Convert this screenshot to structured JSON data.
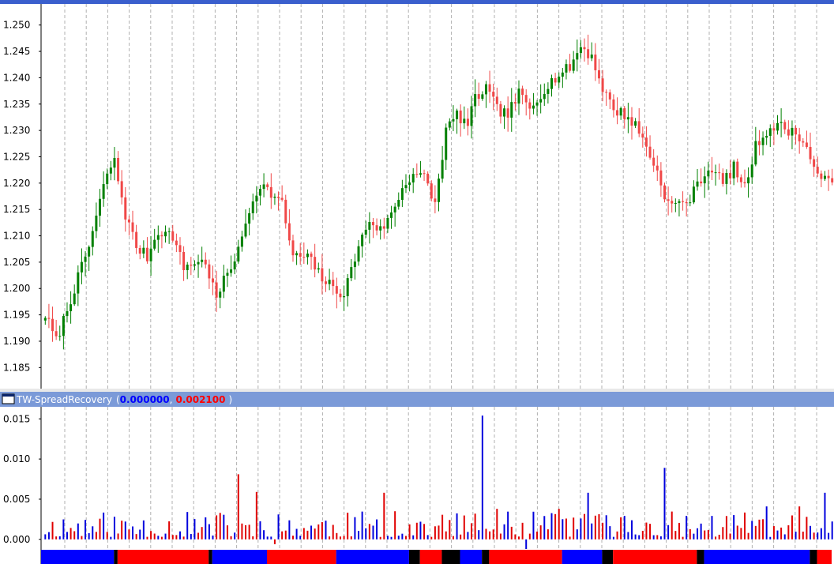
{
  "colors": {
    "up_candle": "#008000",
    "down_candle": "#f04848",
    "positive_bar": "#0000dd",
    "negative_bar": "#e00000",
    "band_blue": "#0000ff",
    "band_red": "#ff0000",
    "band_black": "#000000",
    "separator": "#7b9ad8",
    "grid": "#b0b0b0"
  },
  "price_panel": {
    "y_tick_labels": [
      "1.250",
      "1.245",
      "1.240",
      "1.235",
      "1.230",
      "1.225",
      "1.220",
      "1.215",
      "1.210",
      "1.205",
      "1.200",
      "1.195",
      "1.190",
      "1.185"
    ]
  },
  "indicator_panel": {
    "name": "TW-SpreadRecovery",
    "open_paren": "(",
    "value1": "0.000000",
    "comma": ",",
    "value2": "0.002100",
    "close_paren": ")",
    "value1_color": "#0000ff",
    "value2_color": "#ff0000",
    "y_tick_labels": [
      "0.015",
      "0.010",
      "0.005",
      "0.000"
    ]
  },
  "chart_data": [
    {
      "type": "candlestick",
      "ylim": [
        1.181,
        1.254
      ],
      "grid": "vertical dashed",
      "anchors": [
        [
          0,
          1.195
        ],
        [
          3,
          1.19
        ],
        [
          8,
          1.2
        ],
        [
          12,
          1.208
        ],
        [
          17,
          1.222
        ],
        [
          19,
          1.224
        ],
        [
          22,
          1.214
        ],
        [
          25,
          1.208
        ],
        [
          28,
          1.206
        ],
        [
          31,
          1.211
        ],
        [
          35,
          1.21
        ],
        [
          38,
          1.204
        ],
        [
          41,
          1.205
        ],
        [
          44,
          1.205
        ],
        [
          47,
          1.198
        ],
        [
          50,
          1.203
        ],
        [
          53,
          1.207
        ],
        [
          56,
          1.215
        ],
        [
          59,
          1.22
        ],
        [
          62,
          1.218
        ],
        [
          65,
          1.216
        ],
        [
          68,
          1.206
        ],
        [
          72,
          1.206
        ],
        [
          76,
          1.202
        ],
        [
          79,
          1.2
        ],
        [
          82,
          1.199
        ],
        [
          86,
          1.208
        ],
        [
          89,
          1.213
        ],
        [
          92,
          1.211
        ],
        [
          95,
          1.214
        ],
        [
          98,
          1.219
        ],
        [
          101,
          1.222
        ],
        [
          104,
          1.221
        ],
        [
          107,
          1.216
        ],
        [
          110,
          1.23
        ],
        [
          113,
          1.233
        ],
        [
          116,
          1.231
        ],
        [
          118,
          1.236
        ],
        [
          121,
          1.238
        ],
        [
          124,
          1.234
        ],
        [
          127,
          1.233
        ],
        [
          130,
          1.237
        ],
        [
          133,
          1.234
        ],
        [
          137,
          1.238
        ],
        [
          140,
          1.24
        ],
        [
          144,
          1.242
        ],
        [
          147,
          1.246
        ],
        [
          150,
          1.244
        ],
        [
          153,
          1.238
        ],
        [
          156,
          1.234
        ],
        [
          159,
          1.233
        ],
        [
          162,
          1.231
        ],
        [
          165,
          1.227
        ],
        [
          168,
          1.222
        ],
        [
          171,
          1.216
        ],
        [
          174,
          1.216
        ],
        [
          177,
          1.217
        ],
        [
          180,
          1.221
        ],
        [
          183,
          1.223
        ],
        [
          186,
          1.22
        ],
        [
          189,
          1.223
        ],
        [
          192,
          1.219
        ],
        [
          195,
          1.227
        ],
        [
          198,
          1.23
        ],
        [
          201,
          1.231
        ],
        [
          204,
          1.23
        ],
        [
          207,
          1.229
        ],
        [
          210,
          1.225
        ],
        [
          213,
          1.22
        ],
        [
          216,
          1.221
        ]
      ],
      "count": 217,
      "seed": 7
    },
    {
      "type": "bar",
      "ylim": [
        -0.0012,
        0.0165
      ],
      "count": 217,
      "seed": 11,
      "spikes": [
        [
          53,
          0.0081
        ],
        [
          58,
          0.0059
        ],
        [
          93,
          0.0058
        ],
        [
          96,
          0.0035
        ],
        [
          120,
          0.0154
        ],
        [
          149,
          0.0058
        ],
        [
          124,
          0.0038
        ],
        [
          141,
          0.0038
        ],
        [
          170,
          0.0089
        ],
        [
          198,
          0.0041
        ],
        [
          207,
          0.0041
        ],
        [
          214,
          0.0058
        ]
      ],
      "negatives": [
        [
          63,
          -0.0006
        ],
        [
          132,
          -0.0012
        ]
      ],
      "band": [
        {
          "c": "blue",
          "from": 0,
          "to": 20
        },
        {
          "c": "black",
          "from": 20,
          "to": 21
        },
        {
          "c": "red",
          "from": 21,
          "to": 46
        },
        {
          "c": "black",
          "from": 46,
          "to": 47
        },
        {
          "c": "blue",
          "from": 47,
          "to": 62
        },
        {
          "c": "red",
          "from": 62,
          "to": 81
        },
        {
          "c": "blue",
          "from": 81,
          "to": 101
        },
        {
          "c": "black",
          "from": 101,
          "to": 104
        },
        {
          "c": "red",
          "from": 104,
          "to": 110
        },
        {
          "c": "black",
          "from": 110,
          "to": 115
        },
        {
          "c": "blue",
          "from": 115,
          "to": 121
        },
        {
          "c": "black",
          "from": 121,
          "to": 123
        },
        {
          "c": "red",
          "from": 123,
          "to": 143
        },
        {
          "c": "blue",
          "from": 143,
          "to": 154
        },
        {
          "c": "black",
          "from": 154,
          "to": 157
        },
        {
          "c": "red",
          "from": 157,
          "to": 180
        },
        {
          "c": "black",
          "from": 180,
          "to": 182
        },
        {
          "c": "blue",
          "from": 182,
          "to": 211
        },
        {
          "c": "black",
          "from": 211,
          "to": 213
        },
        {
          "c": "red",
          "from": 213,
          "to": 217
        }
      ]
    }
  ]
}
